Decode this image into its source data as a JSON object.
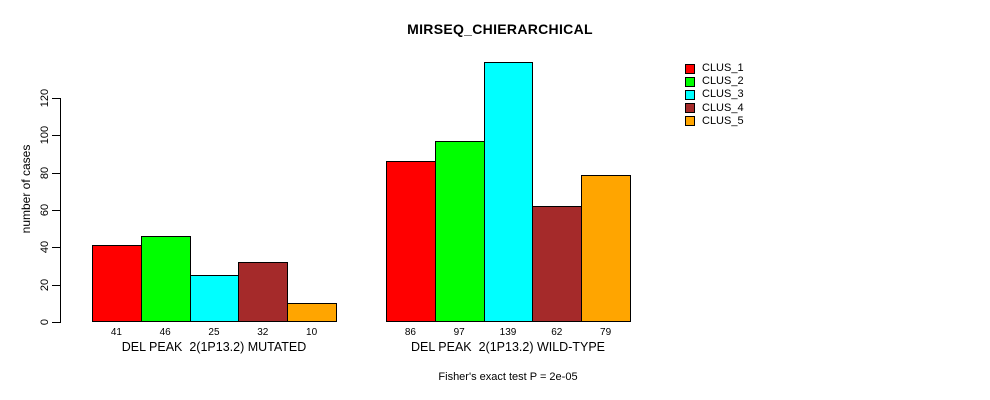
{
  "chart_data": {
    "type": "bar",
    "title": "MIRSEQ_CHIERARCHICAL",
    "ylabel": "number of cases",
    "xlabel": "",
    "ylim": [
      0,
      139
    ],
    "yticks": [
      0,
      20,
      40,
      60,
      80,
      100,
      120
    ],
    "grid": false,
    "legend_position": "top-right",
    "series_names": [
      "CLUS_1",
      "CLUS_2",
      "CLUS_3",
      "CLUS_4",
      "CLUS_5"
    ],
    "series_colors": [
      "#FF0000",
      "#00FF00",
      "#00FFFF",
      "#A52A2A",
      "#FFA500"
    ],
    "groups": [
      {
        "label": "DEL PEAK  2(1P13.2) MUTATED",
        "values": [
          41,
          46,
          25,
          32,
          10
        ]
      },
      {
        "label": "DEL PEAK  2(1P13.2) WILD-TYPE",
        "values": [
          86,
          97,
          139,
          62,
          79
        ]
      }
    ],
    "annotation": "Fisher's exact test P = 2e-05"
  }
}
